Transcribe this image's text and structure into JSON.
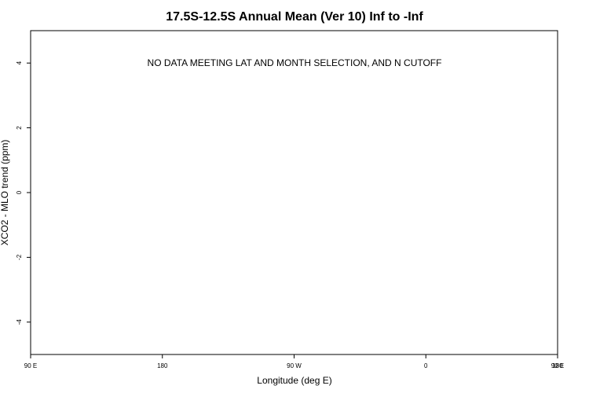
{
  "chart_data": {
    "type": "scatter",
    "title": "17.5S-12.5S Annual Mean (Ver 10)   Inf to -Inf",
    "xlabel": "Longitude (deg E)",
    "ylabel": "XCO2 - MLO trend (ppm)",
    "xlim": [
      90,
      450
    ],
    "ylim": [
      -5,
      5
    ],
    "x_ticks": [
      {
        "value": 90,
        "label": "90 E"
      },
      {
        "value": 180,
        "label": "180"
      },
      {
        "value": 270,
        "label": "90 W"
      },
      {
        "value": 360,
        "label": "0"
      },
      {
        "value": 450,
        "label": "90 E"
      },
      {
        "value": 540,
        "label": "180"
      }
    ],
    "y_ticks": [
      {
        "value": -4,
        "label": "-4"
      },
      {
        "value": -2,
        "label": "-2"
      },
      {
        "value": 0,
        "label": "0"
      },
      {
        "value": 2,
        "label": "2"
      },
      {
        "value": 4,
        "label": "4"
      }
    ],
    "series": [],
    "annotation": "NO DATA MEETING LAT AND MONTH SELECTION, AND N CUTOFF",
    "grid": false,
    "legend": "none"
  }
}
